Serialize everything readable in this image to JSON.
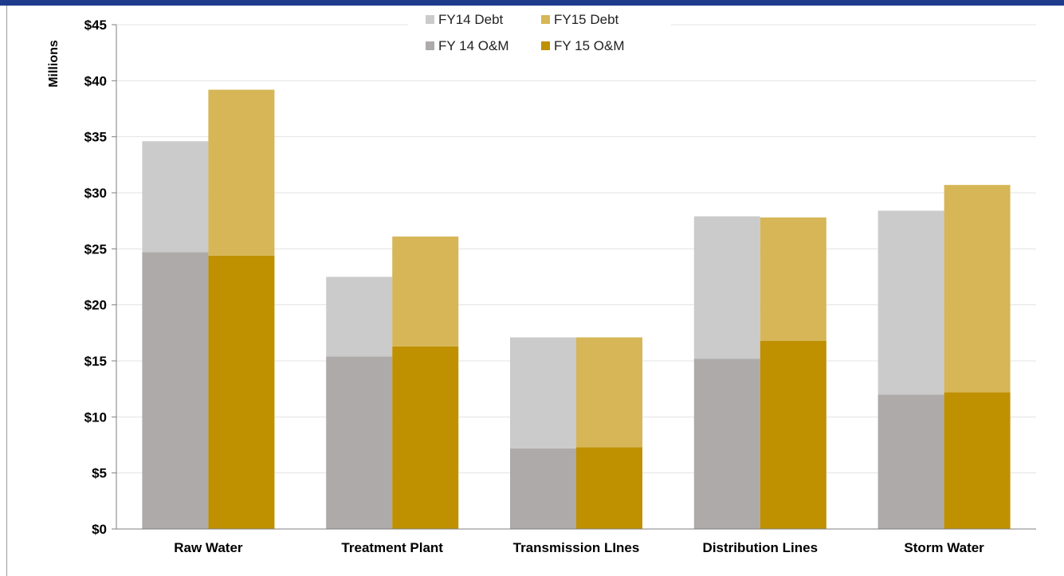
{
  "chart_data": {
    "type": "bar",
    "stacked": true,
    "grouped": true,
    "title": "",
    "xlabel": "",
    "ylabel": "Millions",
    "ylim": [
      0,
      45
    ],
    "y_ticks": [
      "$0",
      "$5",
      "$10",
      "$15",
      "$20",
      "$25",
      "$30",
      "$35",
      "$40",
      "$45"
    ],
    "grid": "horizontal",
    "legend_position": "top-center",
    "categories": [
      "Raw Water",
      "Treatment Plant",
      "Transmission LInes",
      "Distribution Lines",
      "Storm Water"
    ],
    "groups": [
      {
        "name": "FY14",
        "segments": [
          {
            "name": "FY 14 O&M",
            "color": "#aeaaaa",
            "values": [
              24.7,
              15.4,
              7.2,
              15.2,
              12.0
            ]
          },
          {
            "name": "FY14 Debt",
            "color": "#cbcbcb",
            "values": [
              9.9,
              7.1,
              9.9,
              12.7,
              16.4
            ]
          }
        ]
      },
      {
        "name": "FY15",
        "segments": [
          {
            "name": "FY 15 O&M",
            "color": "#bf9000",
            "values": [
              24.4,
              16.3,
              7.3,
              16.8,
              12.2
            ]
          },
          {
            "name": "FY15 Debt",
            "color": "#d6b656",
            "values": [
              14.8,
              9.8,
              9.8,
              11.0,
              18.5
            ]
          }
        ]
      }
    ],
    "legend": [
      {
        "label": "FY14 Debt",
        "color": "#cbcbcb"
      },
      {
        "label": "FY15 Debt",
        "color": "#d6b656"
      },
      {
        "label": "FY 14 O&M",
        "color": "#aeaaaa"
      },
      {
        "label": "FY 15 O&M",
        "color": "#bf9000"
      }
    ]
  }
}
